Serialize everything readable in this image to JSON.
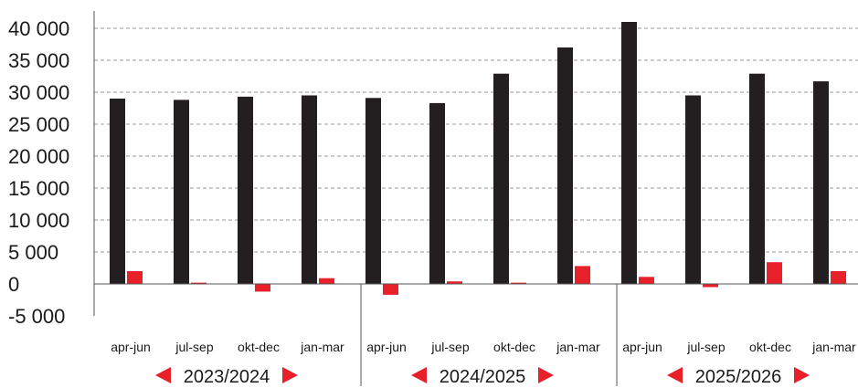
{
  "chart_data": {
    "type": "bar",
    "title": "",
    "xlabel": "",
    "ylabel": "",
    "ylim": [
      -5000,
      40000
    ],
    "yticks": [
      -5000,
      0,
      5000,
      10000,
      15000,
      20000,
      25000,
      30000,
      35000,
      40000
    ],
    "ytick_labels": [
      "-5 000",
      "0",
      "5 000",
      "10 000",
      "15 000",
      "20 000",
      "25 000",
      "30 000",
      "35 000",
      "40 000"
    ],
    "grid": "horizontal dashed",
    "categories": [
      "apr-jun",
      "jul-sep",
      "okt-dec",
      "jan-mar",
      "apr-jun",
      "jul-sep",
      "okt-dec",
      "jan-mar",
      "apr-jun",
      "jul-sep",
      "okt-dec",
      "jan-mar"
    ],
    "groups": [
      {
        "label": "2023/2024",
        "start": 0,
        "count": 4
      },
      {
        "label": "2024/2025",
        "start": 4,
        "count": 4
      },
      {
        "label": "2025/2026",
        "start": 8,
        "count": 4
      }
    ],
    "series": [
      {
        "color": "#231f20",
        "values": [
          29000,
          28800,
          29300,
          29500,
          29100,
          28300,
          32900,
          37000,
          41000,
          29500,
          32900,
          31700
        ]
      },
      {
        "color": "#e8202a",
        "values": [
          2000,
          200,
          -1200,
          900,
          -1700,
          400,
          200,
          2800,
          1100,
          -500,
          3400,
          2000
        ]
      }
    ],
    "arrow_color": "#e8202a"
  }
}
